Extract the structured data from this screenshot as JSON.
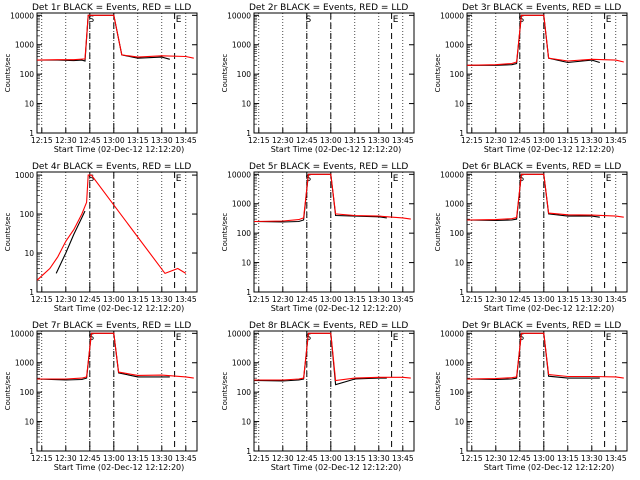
{
  "figure": {
    "panel_labels": [
      "Det 1r",
      "Det 2r",
      "Det 3r",
      "Det 4r",
      "Det 5r",
      "Det 6r",
      "Det 7r",
      "Det 8r",
      "Det 9r"
    ],
    "title_suffix": "BLACK = Events, RED = LLD",
    "ylabel": "Counts/sec",
    "xlabel": "Start Time (02-Dec-12 12:12:20)",
    "xticks": [
      "12:15",
      "12:30",
      "12:45",
      "13:00",
      "13:15",
      "13:30",
      "13:45"
    ],
    "yticks": [
      "1",
      "10",
      "100",
      "1000",
      "10000"
    ],
    "markers": [
      "S",
      "E"
    ],
    "colors": {
      "events": "#000000",
      "lld": "#ff0000",
      "background": "#ffffff"
    }
  },
  "chart_data": [
    {
      "type": "line",
      "panel": "Det 1r",
      "title": "Det 1r BLACK = Events, RED = LLD",
      "ylabel": "Counts/sec",
      "xlabel": "Start Time (02-Dec-12 12:12:20)",
      "yscale": "log",
      "ylim": [
        1,
        12000
      ],
      "xlim": [
        "12:12",
        "13:52"
      ],
      "series": [
        {
          "name": "Events",
          "x": [
            "12:12",
            "12:25",
            "12:35",
            "12:40",
            "12:42",
            "12:44",
            "12:46",
            "12:50",
            "13:00",
            "13:05",
            "13:15",
            "13:30",
            "13:35"
          ],
          "values": [
            300,
            300,
            290,
            300,
            280,
            10000,
            10000,
            10000,
            10000,
            450,
            350,
            380,
            320
          ]
        },
        {
          "name": "LLD",
          "x": [
            "12:12",
            "12:25",
            "12:35",
            "12:42",
            "12:44",
            "12:46",
            "12:50",
            "13:00",
            "13:05",
            "13:15",
            "13:30",
            "13:45",
            "13:50"
          ],
          "values": [
            300,
            310,
            310,
            330,
            10000,
            10000,
            10000,
            10000,
            450,
            380,
            420,
            400,
            350
          ]
        }
      ]
    },
    {
      "type": "line",
      "panel": "Det 2r",
      "title": "Det 2r BLACK = Events, RED = LLD",
      "ylabel": "Counts/sec",
      "xlabel": "Start Time (02-Dec-12 12:12:20)",
      "yscale": "log",
      "ylim": [
        1,
        12000
      ],
      "xlim": [
        "12:12",
        "13:52"
      ],
      "series": []
    },
    {
      "type": "line",
      "panel": "Det 3r",
      "title": "Det 3r BLACK = Events, RED = LLD",
      "ylabel": "Counts/sec",
      "xlabel": "Start Time (02-Dec-12 12:12:20)",
      "yscale": "log",
      "ylim": [
        1,
        12000
      ],
      "xlim": [
        "12:12",
        "13:52"
      ],
      "series": [
        {
          "name": "Events",
          "x": [
            "12:12",
            "12:30",
            "12:40",
            "12:43",
            "12:46",
            "12:52",
            "13:00",
            "13:03",
            "13:15",
            "13:30",
            "13:35"
          ],
          "values": [
            200,
            200,
            210,
            230,
            10000,
            10000,
            10000,
            350,
            250,
            300,
            250
          ]
        },
        {
          "name": "LLD",
          "x": [
            "12:12",
            "12:30",
            "12:40",
            "12:43",
            "12:46",
            "12:52",
            "13:00",
            "13:03",
            "13:15",
            "13:30",
            "13:45",
            "13:50"
          ],
          "values": [
            200,
            210,
            230,
            260,
            10000,
            10000,
            10000,
            350,
            280,
            320,
            300,
            260
          ]
        }
      ]
    },
    {
      "type": "line",
      "panel": "Det 4r",
      "title": "Det 4r BLACK = Events, RED = LLD",
      "ylabel": "Counts/sec",
      "xlabel": "Start Time (02-Dec-12 12:12:20)",
      "yscale": "log",
      "ylim": [
        1,
        1200
      ],
      "xlim": [
        "12:12",
        "13:52"
      ],
      "series": [
        {
          "name": "Events",
          "x": [
            "12:24",
            "12:30",
            "12:35",
            "12:40",
            "12:42"
          ],
          "values": [
            3,
            10,
            30,
            80,
            120
          ]
        },
        {
          "name": "LLD",
          "x": [
            "12:12",
            "12:20",
            "12:25",
            "12:30",
            "12:35",
            "12:40",
            "12:43",
            "12:44",
            "12:46",
            "13:32",
            "13:40",
            "13:45"
          ],
          "values": [
            2,
            4,
            8,
            20,
            40,
            100,
            200,
            1000,
            1000,
            3,
            4,
            3
          ]
        }
      ]
    },
    {
      "type": "line",
      "panel": "Det 5r",
      "title": "Det 5r BLACK = Events, RED = LLD",
      "ylabel": "Counts/sec",
      "xlabel": "Start Time (02-Dec-12 12:12:20)",
      "yscale": "log",
      "ylim": [
        1,
        12000
      ],
      "xlim": [
        "12:12",
        "13:52"
      ],
      "series": [
        {
          "name": "Events",
          "x": [
            "12:12",
            "12:30",
            "12:40",
            "12:43",
            "12:46",
            "12:52",
            "13:00",
            "13:03",
            "13:15",
            "13:30",
            "13:35"
          ],
          "values": [
            250,
            240,
            250,
            280,
            10000,
            10000,
            10000,
            400,
            380,
            360,
            330
          ]
        },
        {
          "name": "LLD",
          "x": [
            "12:12",
            "12:30",
            "12:40",
            "12:43",
            "12:46",
            "12:52",
            "13:00",
            "13:03",
            "13:15",
            "13:30",
            "13:45",
            "13:50"
          ],
          "values": [
            250,
            260,
            290,
            330,
            10000,
            10000,
            10000,
            450,
            400,
            380,
            330,
            300
          ]
        }
      ]
    },
    {
      "type": "line",
      "panel": "Det 6r",
      "title": "Det 6r BLACK = Events, RED = LLD",
      "ylabel": "Counts/sec",
      "xlabel": "Start Time (02-Dec-12 12:12:20)",
      "yscale": "log",
      "ylim": [
        1,
        12000
      ],
      "xlim": [
        "12:12",
        "13:52"
      ],
      "series": [
        {
          "name": "Events",
          "x": [
            "12:12",
            "12:30",
            "12:40",
            "12:43",
            "12:46",
            "12:52",
            "13:00",
            "13:03",
            "13:15",
            "13:30",
            "13:35"
          ],
          "values": [
            280,
            270,
            280,
            300,
            10000,
            10000,
            10000,
            450,
            380,
            380,
            350
          ]
        },
        {
          "name": "LLD",
          "x": [
            "12:12",
            "12:30",
            "12:40",
            "12:43",
            "12:46",
            "12:52",
            "13:00",
            "13:03",
            "13:15",
            "13:30",
            "13:45",
            "13:50"
          ],
          "values": [
            280,
            290,
            310,
            340,
            10000,
            10000,
            10000,
            480,
            420,
            410,
            380,
            350
          ]
        }
      ]
    },
    {
      "type": "line",
      "panel": "Det 7r",
      "title": "Det 7r BLACK = Events, RED = LLD",
      "ylabel": "Counts/sec",
      "xlabel": "Start Time (02-Dec-12 12:12:20)",
      "yscale": "log",
      "ylim": [
        1,
        12000
      ],
      "xlim": [
        "12:12",
        "13:52"
      ],
      "series": [
        {
          "name": "Events",
          "x": [
            "12:12",
            "12:30",
            "12:40",
            "12:43",
            "12:46",
            "12:52",
            "13:00",
            "13:03",
            "13:15",
            "13:30",
            "13:35"
          ],
          "values": [
            280,
            260,
            270,
            300,
            10000,
            10000,
            10000,
            450,
            330,
            330,
            330
          ]
        },
        {
          "name": "LLD",
          "x": [
            "12:12",
            "12:30",
            "12:40",
            "12:43",
            "12:46",
            "12:52",
            "13:00",
            "13:03",
            "13:15",
            "13:30",
            "13:45",
            "13:50"
          ],
          "values": [
            280,
            280,
            300,
            330,
            10000,
            10000,
            10000,
            480,
            370,
            380,
            330,
            300
          ]
        }
      ]
    },
    {
      "type": "line",
      "panel": "Det 8r",
      "title": "Det 8r BLACK = Events, RED = LLD",
      "ylabel": "Counts/sec",
      "xlabel": "Start Time (02-Dec-12 12:12:20)",
      "yscale": "log",
      "ylim": [
        1,
        12000
      ],
      "xlim": [
        "12:12",
        "13:52"
      ],
      "series": [
        {
          "name": "Events",
          "x": [
            "12:12",
            "12:30",
            "12:40",
            "12:43",
            "12:46",
            "12:52",
            "13:00",
            "13:03",
            "13:15",
            "13:30",
            "13:35"
          ],
          "values": [
            250,
            240,
            260,
            280,
            10000,
            10000,
            10000,
            180,
            280,
            300,
            300
          ]
        },
        {
          "name": "LLD",
          "x": [
            "12:12",
            "12:30",
            "12:40",
            "12:43",
            "12:46",
            "12:52",
            "13:00",
            "13:03",
            "13:15",
            "13:30",
            "13:45",
            "13:50"
          ],
          "values": [
            260,
            260,
            280,
            300,
            10000,
            10000,
            10000,
            250,
            300,
            320,
            320,
            300
          ]
        }
      ]
    },
    {
      "type": "line",
      "panel": "Det 9r",
      "title": "Det 9r BLACK = Events, RED = LLD",
      "ylabel": "Counts/sec",
      "xlabel": "Start Time (02-Dec-12 12:12:20)",
      "yscale": "log",
      "ylim": [
        1,
        12000
      ],
      "xlim": [
        "12:12",
        "13:52"
      ],
      "series": [
        {
          "name": "Events",
          "x": [
            "12:12",
            "12:30",
            "12:40",
            "12:43",
            "12:46",
            "12:52",
            "13:00",
            "13:03",
            "13:15",
            "13:30",
            "13:35"
          ],
          "values": [
            280,
            270,
            280,
            300,
            10000,
            10000,
            10000,
            350,
            300,
            300,
            300
          ]
        },
        {
          "name": "LLD",
          "x": [
            "12:12",
            "12:30",
            "12:40",
            "12:43",
            "12:46",
            "12:52",
            "13:00",
            "13:03",
            "13:15",
            "13:30",
            "13:45",
            "13:50"
          ],
          "values": [
            280,
            290,
            310,
            330,
            10000,
            10000,
            10000,
            400,
            340,
            340,
            330,
            300
          ]
        }
      ]
    }
  ]
}
